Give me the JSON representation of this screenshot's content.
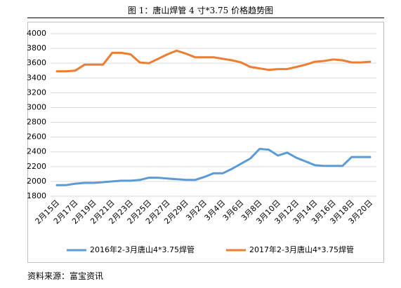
{
  "title": "图 1：唐山焊管 4 寸*3.75 价格趋势图",
  "source": "资料来源：富宝资讯",
  "chart_data": {
    "type": "line",
    "title": "图 1：唐山焊管 4 寸*3.75 价格趋势图",
    "xlabel": "",
    "ylabel": "",
    "ylim": [
      1800,
      4000
    ],
    "yticks": [
      1800,
      2000,
      2200,
      2400,
      2600,
      2800,
      3000,
      3200,
      3400,
      3600,
      3800,
      4000
    ],
    "grid": true,
    "legend": "bottom",
    "categories": [
      "2月15日",
      "2月16日",
      "2月17日",
      "2月18日",
      "2月19日",
      "2月20日",
      "2月21日",
      "2月22日",
      "2月23日",
      "2月24日",
      "2月25日",
      "2月26日",
      "2月27日",
      "2月28日",
      "2月29日",
      "3月1日",
      "3月2日",
      "3月3日",
      "3月4日",
      "3月5日",
      "3月6日",
      "3月7日",
      "3月8日",
      "3月9日",
      "3月10日",
      "3月11日",
      "3月12日",
      "3月13日",
      "3月14日",
      "3月15日",
      "3月16日",
      "3月17日",
      "3月18日",
      "3月19日",
      "3月20日"
    ],
    "tick_labels": [
      "2月15日",
      "2月17日",
      "2月19日",
      "2月21日",
      "2月23日",
      "2月25日",
      "2月27日",
      "2月29日",
      "3月2日",
      "3月4日",
      "3月6日",
      "3月8日",
      "3月10日",
      "3月12日",
      "3月14日",
      "3月16日",
      "3月18日",
      "3月20日"
    ],
    "series": [
      {
        "name": "2016年2-3月唐山4*3.75焊管",
        "color": "#5b9bd5",
        "values": [
          1950,
          1950,
          1970,
          1980,
          1980,
          1990,
          2000,
          2010,
          2010,
          2020,
          2050,
          2050,
          2040,
          2030,
          2020,
          2020,
          2060,
          2110,
          2110,
          2170,
          2240,
          2310,
          2440,
          2430,
          2350,
          2390,
          2320,
          2270,
          2220,
          2210,
          2210,
          2210,
          2330,
          2330,
          2330
        ]
      },
      {
        "name": "2017年2-3月唐山4*3.75焊管",
        "color": "#ed7d31",
        "values": [
          3490,
          3490,
          3500,
          3580,
          3580,
          3580,
          3740,
          3740,
          3720,
          3610,
          3600,
          3660,
          3720,
          3770,
          3730,
          3680,
          3680,
          3680,
          3660,
          3640,
          3610,
          3550,
          3530,
          3510,
          3520,
          3520,
          3550,
          3580,
          3620,
          3630,
          3650,
          3640,
          3610,
          3610,
          3620
        ]
      }
    ]
  }
}
